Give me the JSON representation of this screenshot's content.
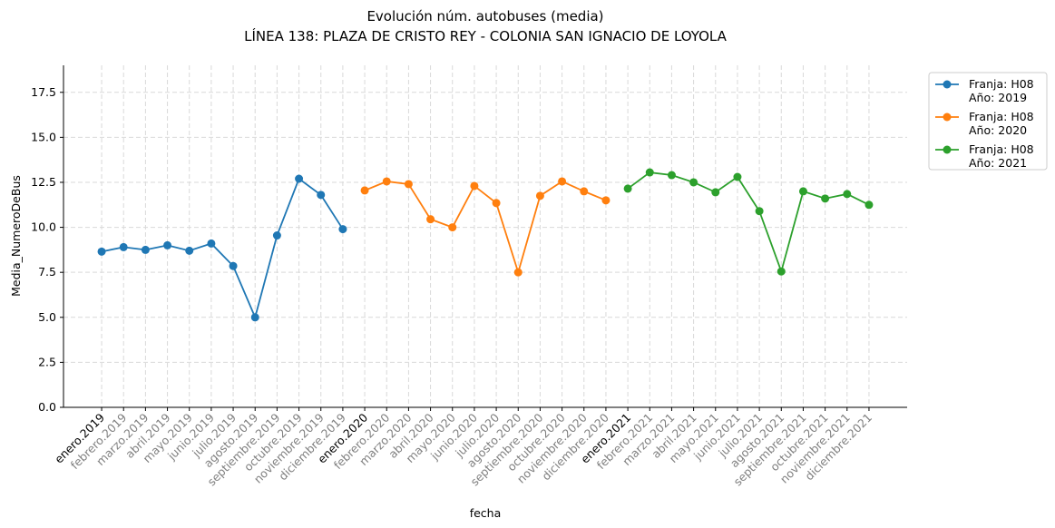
{
  "chart_data": {
    "type": "line",
    "title": "Evolución núm. autobuses (media)",
    "subtitle": "LÍNEA 138: PLAZA DE CRISTO REY - COLONIA SAN IGNACIO DE LOYOLA",
    "xlabel": "fecha",
    "ylabel": "Media_NumeroDeBus",
    "categories": [
      "enero.2019",
      "febrero.2019",
      "marzo.2019",
      "abril.2019",
      "mayo.2019",
      "junio.2019",
      "julio.2019",
      "agosto.2019",
      "septiembre.2019",
      "octubre.2019",
      "noviembre.2019",
      "diciembre.2019",
      "enero.2020",
      "febrero.2020",
      "marzo.2020",
      "abril.2020",
      "mayo.2020",
      "junio.2020",
      "julio.2020",
      "agosto.2020",
      "septiembre.2020",
      "octubre.2020",
      "noviembre.2020",
      "diciembre.2020",
      "enero.2021",
      "febrero.2021",
      "marzo.2021",
      "abril.2021",
      "mayo.2021",
      "junio.2021",
      "julio.2021",
      "agosto.2021",
      "septiembre.2021",
      "octubre.2021",
      "noviembre.2021",
      "diciembre.2021"
    ],
    "series": [
      {
        "name": "Franja: H08\nAño: 2019",
        "color": "#1f77b4",
        "values": [
          8.65,
          8.9,
          8.75,
          9.0,
          8.7,
          9.1,
          7.85,
          5.0,
          9.55,
          12.7,
          11.8,
          9.9,
          null,
          null,
          null,
          null,
          null,
          null,
          null,
          null,
          null,
          null,
          null,
          null,
          null,
          null,
          null,
          null,
          null,
          null,
          null,
          null,
          null,
          null,
          null,
          null
        ]
      },
      {
        "name": "Franja: H08\nAño: 2020",
        "color": "#ff7f0e",
        "values": [
          null,
          null,
          null,
          null,
          null,
          null,
          null,
          null,
          null,
          null,
          null,
          null,
          12.05,
          12.55,
          12.4,
          10.45,
          10.0,
          12.3,
          11.35,
          7.5,
          11.75,
          12.55,
          12.0,
          11.5,
          null,
          null,
          null,
          null,
          null,
          null,
          null,
          null,
          null,
          null,
          null,
          null
        ]
      },
      {
        "name": "Franja: H08\nAño: 2021",
        "color": "#2ca02c",
        "values": [
          null,
          null,
          null,
          null,
          null,
          null,
          null,
          null,
          null,
          null,
          null,
          null,
          null,
          null,
          null,
          null,
          null,
          null,
          null,
          null,
          null,
          null,
          null,
          null,
          12.15,
          13.05,
          12.9,
          12.5,
          11.95,
          12.8,
          10.9,
          7.55,
          12.0,
          11.6,
          11.85,
          11.25
        ]
      }
    ],
    "ylim": [
      0,
      19
    ],
    "yticks": [
      {
        "value": 0,
        "label": "0.0"
      },
      {
        "value": 2.5,
        "label": "2.5"
      },
      {
        "value": 5,
        "label": "5.0"
      },
      {
        "value": 7.5,
        "label": "7.5"
      },
      {
        "value": 10,
        "label": "10.0"
      },
      {
        "value": 12.5,
        "label": "12.5"
      },
      {
        "value": 15,
        "label": "15.0"
      },
      {
        "value": 17.5,
        "label": "17.5"
      }
    ],
    "grid": true,
    "legend": "outside upper right"
  }
}
